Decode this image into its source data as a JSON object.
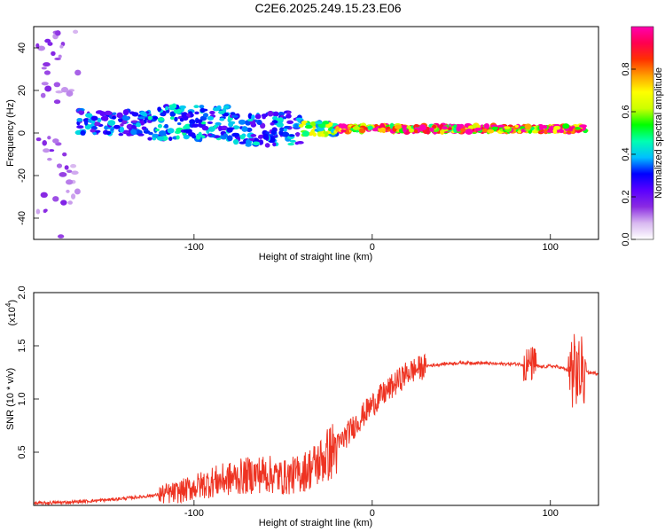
{
  "figure_title": "C2E6.2025.249.15.23.E06",
  "chart_data": [
    {
      "type": "heatmap",
      "panel": "top",
      "title": "C2E6.2025.249.15.23.E06",
      "xlabel": "Height of straight line (km)",
      "ylabel": "Frequency (Hz)",
      "xlim": [
        -190,
        127
      ],
      "ylim": [
        -50,
        50
      ],
      "xticks": [
        -100,
        0,
        100
      ],
      "xtick_labels": [
        "-100",
        "0",
        "100"
      ],
      "yticks": [
        -40,
        -20,
        0,
        20,
        40
      ],
      "ytick_labels": [
        "-40",
        "-20",
        "0",
        "20",
        "40"
      ],
      "colorbar": {
        "label": "Normalized spectral amplitude",
        "range": [
          0,
          1
        ],
        "ticks": [
          0.0,
          0.2,
          0.4,
          0.6,
          0.8
        ],
        "tick_labels": [
          "0.0",
          "0.2",
          "0.4",
          "0.6",
          "0.8"
        ],
        "colors": [
          "#ffffff",
          "#d8b8f0",
          "#8a2be2",
          "#5a00ff",
          "#0000ff",
          "#00bfff",
          "#00ffb0",
          "#00ff00",
          "#ccff00",
          "#ffff00",
          "#ffa000",
          "#ff3000",
          "#ff0050",
          "#ff00b0"
        ]
      },
      "bands": [
        {
          "x_start": -190,
          "x_end": -165,
          "f_center": 0,
          "f_halfwidth": 50,
          "amplitude": 0.15
        },
        {
          "x_start": -165,
          "x_end": -125,
          "f_center": 5,
          "f_halfwidth": 6,
          "amplitude": 0.35
        },
        {
          "x_start": -125,
          "x_end": -80,
          "f_center": 5,
          "f_halfwidth": 8,
          "amplitude": 0.4
        },
        {
          "x_start": -80,
          "x_end": -40,
          "f_center": 2,
          "f_halfwidth": 8,
          "amplitude": 0.38
        },
        {
          "x_start": -40,
          "x_end": -20,
          "f_center": 2,
          "f_halfwidth": 3,
          "amplitude": 0.6
        },
        {
          "x_start": -20,
          "x_end": 120,
          "f_center": 2,
          "f_halfwidth": 1.5,
          "amplitude": 0.95
        }
      ]
    },
    {
      "type": "line",
      "panel": "bottom",
      "xlabel": "Height of straight line (km)",
      "ylabel": "SNR (10 * v/v)",
      "yscale_label": "(x10",
      "yscale_exp": "4",
      "yscale_close": ")",
      "xlim": [
        -190,
        127
      ],
      "ylim": [
        0,
        2.0
      ],
      "xticks": [
        -100,
        0,
        100
      ],
      "xtick_labels": [
        "-100",
        "0",
        "100"
      ],
      "yticks": [
        0.5,
        1.0,
        1.5,
        2.0
      ],
      "ytick_labels": [
        "0.5",
        "1.0",
        "1.5",
        "2.0"
      ],
      "color": "#ee3322",
      "series": [
        {
          "name": "SNR",
          "x": [
            -190,
            -170,
            -150,
            -130,
            -110,
            -100,
            -90,
            -80,
            -70,
            -60,
            -50,
            -40,
            -30,
            -20,
            -10,
            0,
            10,
            20,
            30,
            40,
            50,
            60,
            70,
            80,
            90,
            95,
            100,
            105,
            110,
            115,
            120,
            127
          ],
          "y": [
            0.02,
            0.03,
            0.05,
            0.08,
            0.12,
            0.17,
            0.22,
            0.25,
            0.28,
            0.3,
            0.26,
            0.3,
            0.4,
            0.55,
            0.75,
            0.95,
            1.1,
            1.25,
            1.31,
            1.33,
            1.34,
            1.34,
            1.33,
            1.33,
            1.32,
            1.3,
            1.31,
            1.3,
            1.27,
            1.25,
            1.25,
            1.24
          ]
        }
      ]
    }
  ]
}
